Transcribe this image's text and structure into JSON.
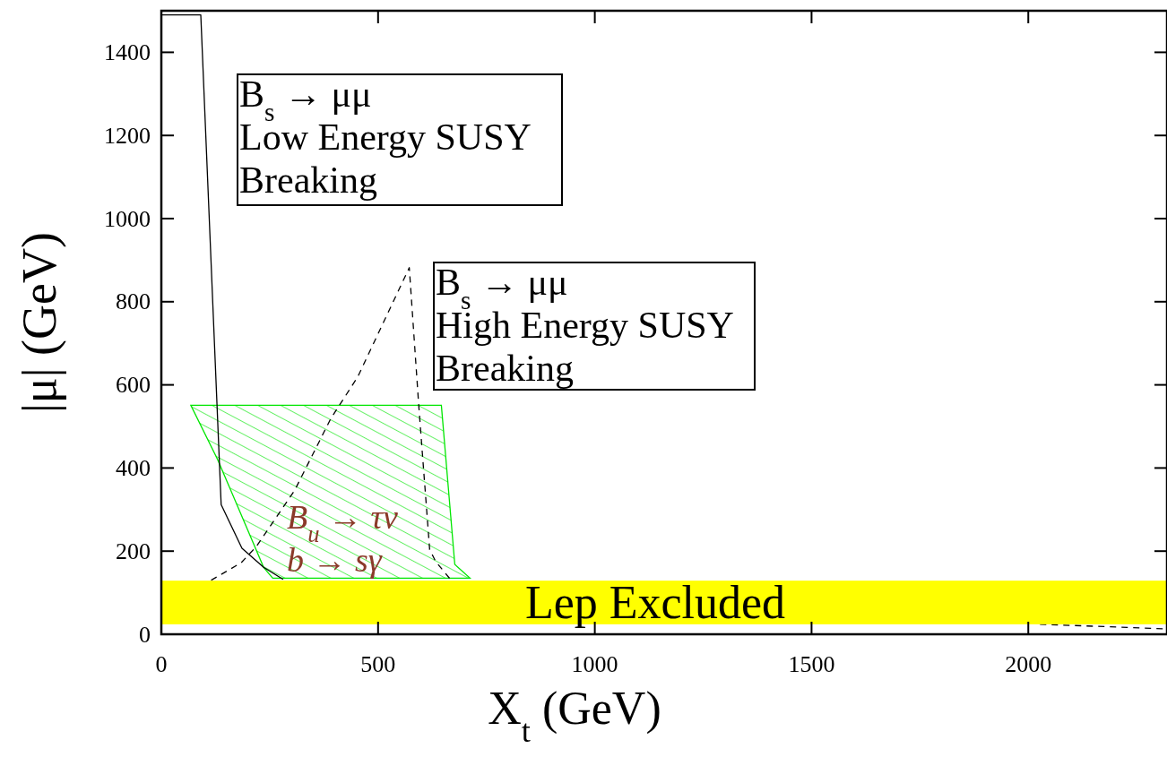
{
  "chart_data": {
    "type": "line",
    "xlabel": "X$_{t}$ (GeV)",
    "ylabel": "|μ| (GeV)",
    "xlim": [
      0,
      2320
    ],
    "ylim": [
      0,
      1500
    ],
    "xticks": [
      0,
      500,
      1000,
      1500,
      2000
    ],
    "yticks": [
      0,
      200,
      400,
      600,
      800,
      1000,
      1200,
      1400
    ],
    "series": [
      {
        "type": "area",
        "color": "#00e600",
        "x": [
          68,
          646,
          677,
          712,
          257,
          236,
          130
        ],
        "values": [
          551,
          551,
          168,
          135,
          135,
          161,
          420
        ]
      },
      {
        "color": "#000000",
        "line_style": "solid",
        "x": [
          0,
          91,
          138,
          186,
          236,
          281
        ],
        "values": [
          1490,
          1490,
          312,
          207,
          161,
          132
        ]
      },
      {
        "color": "#000000",
        "line_style": "dashed",
        "x": [
          115,
          184,
          219,
          308,
          391,
          453,
          572,
          594,
          619,
          633,
          667
        ],
        "values": [
          130,
          172,
          211,
          347,
          519,
          619,
          882,
          548,
          204,
          175,
          132
        ]
      },
      {
        "color": "#000000",
        "line_style": "dashed",
        "x": [
          2027,
          2320
        ],
        "values": [
          24,
          13
        ]
      }
    ],
    "bands": [
      {
        "axis": "y",
        "from": 24,
        "to": 129,
        "label": "Lep Excluded",
        "color": "#ffff00"
      }
    ],
    "annotations": [
      "B$_{s}$ → μμ\nLow Energy SUSY\nBreaking",
      "B$_{s}$ → μμ\nHigh Energy SUSY\nBreaking",
      "B$_{u}$ → τν",
      "b → sγ"
    ]
  }
}
